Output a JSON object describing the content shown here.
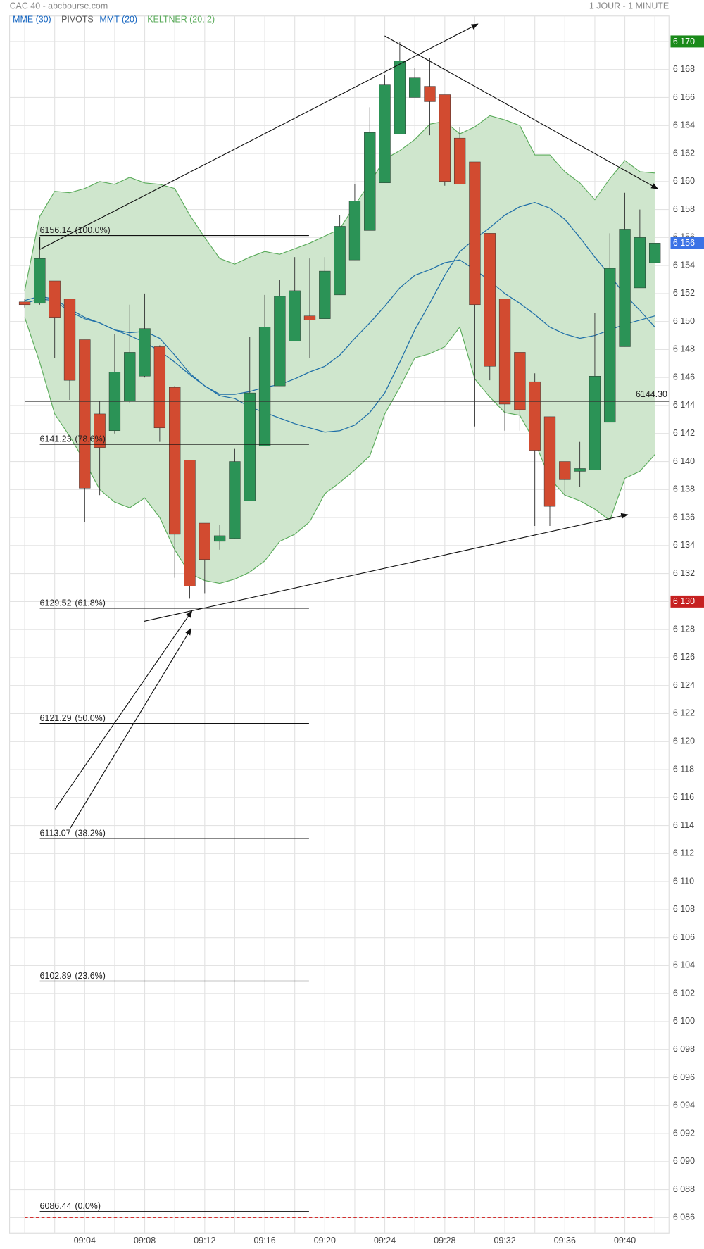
{
  "chart_data": {
    "type": "candlestick",
    "title": "CAC 40 - abcbourse.com",
    "subtitle": "1 JOUR - 1 MINUTE",
    "pivots_label": "PIVOTS",
    "categories": [
      null,
      null,
      null,
      null,
      "09:04",
      null,
      null,
      null,
      "09:08",
      null,
      null,
      null,
      "09:12",
      null,
      null,
      null,
      "09:16",
      null,
      null,
      null,
      "09:20",
      null,
      null,
      null,
      "09:24",
      null,
      null,
      null,
      "09:28",
      null,
      null,
      null,
      "09:32",
      null,
      null,
      null,
      "09:36",
      null,
      null,
      null,
      "09:40",
      null,
      null
    ],
    "open": [
      6151.4,
      6151.3,
      6152.9,
      6151.6,
      6148.7,
      6143.4,
      6142.2,
      6144.3,
      6146.1,
      6148.2,
      6145.3,
      6140.1,
      6135.6,
      6134.3,
      6134.5,
      6137.2,
      6141.1,
      6145.4,
      6148.6,
      6150.4,
      6150.2,
      6151.9,
      6154.4,
      6156.5,
      6159.9,
      6163.4,
      6166.0,
      6166.8,
      6166.2,
      6163.1,
      6161.4,
      6156.3,
      6151.6,
      6147.8,
      6145.7,
      6143.2,
      6140.0,
      6139.3,
      6139.4,
      6142.8,
      6148.2,
      6152.4,
      6154.2
    ],
    "high": [
      6151.6,
      6155.2,
      6152.9,
      6151.6,
      6148.7,
      6144.3,
      6149.1,
      6151.2,
      6152.0,
      6148.3,
      6145.4,
      6140.1,
      6135.6,
      6135.5,
      6140.9,
      6148.9,
      6151.9,
      6153.0,
      6154.6,
      6154.5,
      6154.6,
      6157.6,
      6159.8,
      6165.3,
      6167.6,
      6170.0,
      6168.1,
      6168.8,
      6166.2,
      6163.9,
      6161.4,
      6156.3,
      6151.6,
      6147.8,
      6146.3,
      6143.2,
      6140.0,
      6141.4,
      6150.6,
      6156.3,
      6159.2,
      6158.0,
      6155.6
    ],
    "low": [
      6151.0,
      6151.2,
      6147.4,
      6144.4,
      6135.7,
      6137.6,
      6142.0,
      6144.2,
      6146.0,
      6141.4,
      6131.7,
      6130.2,
      6130.6,
      6133.7,
      6134.5,
      6137.2,
      6141.1,
      6145.4,
      6148.6,
      6147.4,
      6150.2,
      6151.9,
      6154.4,
      6156.5,
      6159.9,
      6163.4,
      6166.0,
      6163.3,
      6159.7,
      6159.8,
      6142.5,
      6145.8,
      6142.2,
      6142.2,
      6135.4,
      6135.4,
      6137.5,
      6138.2,
      6139.4,
      6142.8,
      6148.2,
      6152.4,
      6154.2
    ],
    "close": [
      6151.2,
      6154.5,
      6150.3,
      6145.8,
      6138.1,
      6141.0,
      6146.4,
      6147.8,
      6149.5,
      6142.4,
      6134.8,
      6131.1,
      6133.0,
      6134.7,
      6140.0,
      6144.9,
      6149.6,
      6151.8,
      6152.2,
      6150.1,
      6153.6,
      6156.8,
      6158.6,
      6163.5,
      6166.9,
      6168.6,
      6167.4,
      6165.7,
      6160.0,
      6159.8,
      6151.2,
      6146.8,
      6144.1,
      6143.7,
      6140.8,
      6136.8,
      6138.7,
      6139.5,
      6146.1,
      6153.8,
      6156.6,
      6156.0,
      6155.6
    ],
    "up_color": "#2b9356",
    "down_color": "#d24b30",
    "keltner": {
      "name": "KELTNER (20, 2)",
      "color": "#5aab5a",
      "fill": "#cfe6cd",
      "upper": [
        6152.2,
        6157.5,
        6159.3,
        6159.2,
        6159.5,
        6160.0,
        6159.8,
        6160.3,
        6159.9,
        6159.8,
        6159.5,
        6157.6,
        6156.0,
        6154.5,
        6154.1,
        6154.6,
        6155.0,
        6154.8,
        6155.2,
        6155.6,
        6156.1,
        6156.6,
        6158.3,
        6159.9,
        6161.6,
        6162.2,
        6163.0,
        6164.1,
        6164.3,
        6163.4,
        6163.9,
        6164.7,
        6164.4,
        6164.0,
        6161.9,
        6161.9,
        6160.7,
        6159.9,
        6158.7,
        6160.2,
        6161.5,
        6160.7,
        6160.6
      ],
      "lower": [
        6150.3,
        6147.1,
        6143.4,
        6141.8,
        6140.0,
        6138.0,
        6137.1,
        6136.7,
        6137.4,
        6136.0,
        6133.7,
        6132.0,
        6131.5,
        6131.3,
        6131.6,
        6132.1,
        6132.9,
        6134.3,
        6134.8,
        6135.7,
        6137.7,
        6138.5,
        6139.4,
        6140.4,
        6143.4,
        6145.3,
        6147.4,
        6147.7,
        6148.2,
        6149.6,
        6145.9,
        6144.6,
        6143.5,
        6143.3,
        6141.4,
        6138.8,
        6137.6,
        6137.2,
        6136.6,
        6135.8,
        6138.8,
        6139.3,
        6140.5
      ]
    },
    "series": [
      {
        "name": "MME (30)",
        "color": "#1f6fa8",
        "values": [
          6151.3,
          6151.6,
          6151.5,
          6150.7,
          6150.2,
          6149.9,
          6149.4,
          6149.0,
          6148.5,
          6147.9,
          6147.1,
          6146.2,
          6145.4,
          6144.8,
          6144.8,
          6145.0,
          6145.3,
          6145.5,
          6145.9,
          6146.4,
          6146.8,
          6147.6,
          6148.8,
          6149.9,
          6151.1,
          6152.4,
          6153.3,
          6153.7,
          6154.2,
          6154.4,
          6153.7,
          6152.9,
          6152.0,
          6151.3,
          6150.5,
          6149.6,
          6149.1,
          6148.8,
          6149.0,
          6149.4,
          6149.8,
          6150.1,
          6150.4
        ]
      },
      {
        "name": "MMT (20)",
        "color": "#1f6fa8",
        "values": [
          6151.5,
          6151.8,
          6151.6,
          6150.9,
          6150.3,
          6149.9,
          6149.4,
          6149.2,
          6149.3,
          6148.8,
          6147.6,
          6146.3,
          6145.4,
          6144.7,
          6144.5,
          6143.9,
          6143.5,
          6143.1,
          6142.7,
          6142.4,
          6142.1,
          6142.2,
          6142.6,
          6143.5,
          6144.9,
          6147.1,
          6149.4,
          6151.3,
          6153.3,
          6155.0,
          6155.9,
          6156.7,
          6157.6,
          6158.2,
          6158.5,
          6158.1,
          6157.3,
          6156.0,
          6154.6,
          6153.3,
          6151.9,
          6150.8,
          6149.6
        ]
      }
    ],
    "fib_levels": [
      {
        "price": 6156.14,
        "percent": 100,
        "percent_label": "(100.0%)"
      },
      {
        "price": 6141.23,
        "percent": 78.6,
        "percent_label": "(78.6%)"
      },
      {
        "price": 6129.52,
        "percent": 61.8,
        "percent_label": "(61.8%)"
      },
      {
        "price": 6121.29,
        "percent": 50,
        "percent_label": "(50.0%)"
      },
      {
        "price": 6113.07,
        "percent": 38.2,
        "percent_label": "(38.2%)"
      },
      {
        "price": 6102.89,
        "percent": 23.6,
        "percent_label": "(23.6%)"
      },
      {
        "price": 6086.44,
        "percent": 0,
        "percent_label": "(0.0%)"
      }
    ],
    "hline": {
      "value": 6144.3,
      "label": "6144.30"
    },
    "reference_line": {
      "value": 6086,
      "color": "#d32f2f"
    },
    "price_markers": [
      {
        "value": 6170,
        "label": "6 170",
        "color": "#1a8a1a"
      },
      {
        "value": 6155.6,
        "label": "6 156",
        "color": "#3b73e6"
      },
      {
        "value": 6130,
        "label": "6 130",
        "color": "#c62020"
      }
    ],
    "ylim": [
      6084.9,
      6171.82
    ],
    "yticks": [
      {
        "value": 6086,
        "label": "6 086"
      },
      {
        "value": 6088,
        "label": "6 088"
      },
      {
        "value": 6090,
        "label": "6 090"
      },
      {
        "value": 6092,
        "label": "6 092"
      },
      {
        "value": 6094,
        "label": "6 094"
      },
      {
        "value": 6096,
        "label": "6 096"
      },
      {
        "value": 6098,
        "label": "6 098"
      },
      {
        "value": 6100,
        "label": "6 100"
      },
      {
        "value": 6102,
        "label": "6 102"
      },
      {
        "value": 6104,
        "label": "6 104"
      },
      {
        "value": 6106,
        "label": "6 106"
      },
      {
        "value": 6108,
        "label": "6 108"
      },
      {
        "value": 6110,
        "label": "6 110"
      },
      {
        "value": 6112,
        "label": "6 112"
      },
      {
        "value": 6114,
        "label": "6 114"
      },
      {
        "value": 6116,
        "label": "6 116"
      },
      {
        "value": 6118,
        "label": "6 118"
      },
      {
        "value": 6120,
        "label": "6 120"
      },
      {
        "value": 6122,
        "label": "6 122"
      },
      {
        "value": 6124,
        "label": "6 124"
      },
      {
        "value": 6126,
        "label": "6 126"
      },
      {
        "value": 6128,
        "label": "6 128"
      },
      {
        "value": 6130,
        "label": "6 130"
      },
      {
        "value": 6132,
        "label": "6 132"
      },
      {
        "value": 6134,
        "label": "6 134"
      },
      {
        "value": 6136,
        "label": "6 136"
      },
      {
        "value": 6138,
        "label": "6 138"
      },
      {
        "value": 6140,
        "label": "6 140"
      },
      {
        "value": 6142,
        "label": "6 142"
      },
      {
        "value": 6144,
        "label": "6 144"
      },
      {
        "value": 6146,
        "label": "6 146"
      },
      {
        "value": 6148,
        "label": "6 148"
      },
      {
        "value": 6150,
        "label": "6 150"
      },
      {
        "value": 6152,
        "label": "6 152"
      },
      {
        "value": 6154,
        "label": "6 154"
      },
      {
        "value": 6156,
        "label": "6 156"
      },
      {
        "value": 6158,
        "label": "6 158"
      },
      {
        "value": 6160,
        "label": "6 160"
      },
      {
        "value": 6162,
        "label": "6 162"
      },
      {
        "value": 6164,
        "label": "6 164"
      },
      {
        "value": 6166,
        "label": "6 166"
      },
      {
        "value": 6168,
        "label": "6 168"
      },
      {
        "value": 6170,
        "label": "6 170"
      }
    ],
    "grid": true
  }
}
